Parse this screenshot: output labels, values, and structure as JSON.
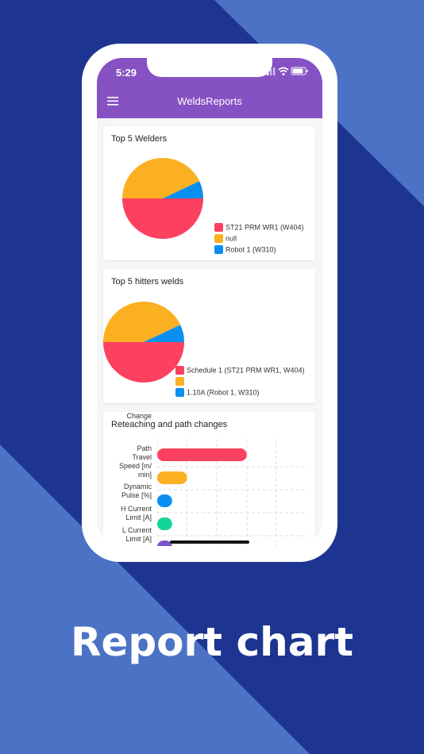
{
  "status_bar": {
    "time": "5:29",
    "icons": [
      "signal-icon",
      "wifi-icon",
      "battery-icon"
    ]
  },
  "app_bar": {
    "title": "WeldsReports",
    "menu_icon": "hamburger-menu-icon"
  },
  "cards": {
    "welders": {
      "title": "Top 5 Welders",
      "legend": [
        {
          "label": "ST21 PRM WR1 (W404)",
          "color": "#fc4160"
        },
        {
          "label": "null",
          "color": "#fbb022"
        },
        {
          "label": "Robot 1 (W310)",
          "color": "#0a8ff0"
        }
      ]
    },
    "hitters": {
      "title": "Top 5 hitters welds",
      "legend": [
        {
          "label": "Schedule 1 (ST21 PRM WR1, W404)",
          "color": "#fc4160"
        },
        {
          "label": "",
          "color": "#fbb022"
        },
        {
          "label": "1.10A (Robot 1, W310)",
          "color": "#0a8ff0"
        }
      ]
    },
    "reteaching": {
      "title": "Reteaching and path changes",
      "bar_labels": [
        [
          "Path",
          "Change"
        ],
        [
          "Travel",
          "Speed [m/",
          "min]"
        ],
        [
          "Dynamic",
          "Pulse [%]"
        ],
        [
          "H Current",
          "Limit [A]"
        ],
        [
          "L Current",
          "Limit [A]"
        ]
      ]
    }
  },
  "headline": "Report chart",
  "chart_data": [
    {
      "type": "pie",
      "title": "Top 5 Welders",
      "labels": [
        "ST21 PRM WR1 (W404)",
        "null",
        "Robot 1 (W310)"
      ],
      "values": [
        50,
        43,
        7
      ],
      "colors": [
        "#fc4160",
        "#fbb022",
        "#0a8ff0"
      ]
    },
    {
      "type": "pie",
      "title": "Top 5 hitters welds",
      "labels": [
        "Schedule 1 (ST21 PRM WR1, W404)",
        "",
        "1.10A (Robot 1, W310)"
      ],
      "values": [
        50,
        43,
        7
      ],
      "colors": [
        "#fc4160",
        "#fbb022",
        "#0a8ff0"
      ]
    },
    {
      "type": "bar",
      "orientation": "horizontal",
      "title": "Reteaching and path changes",
      "categories": [
        "Path Change",
        "Travel Speed [m/min]",
        "Dynamic Pulse [%]",
        "H Current Limit [A]",
        "L Current Limit [A]"
      ],
      "values": [
        60,
        20,
        10,
        10,
        10
      ],
      "colors": [
        "#fc4160",
        "#fbb022",
        "#0a8ff0",
        "#12d49a",
        "#7b55c8"
      ],
      "xlim": [
        0,
        100
      ],
      "grid": true
    }
  ]
}
